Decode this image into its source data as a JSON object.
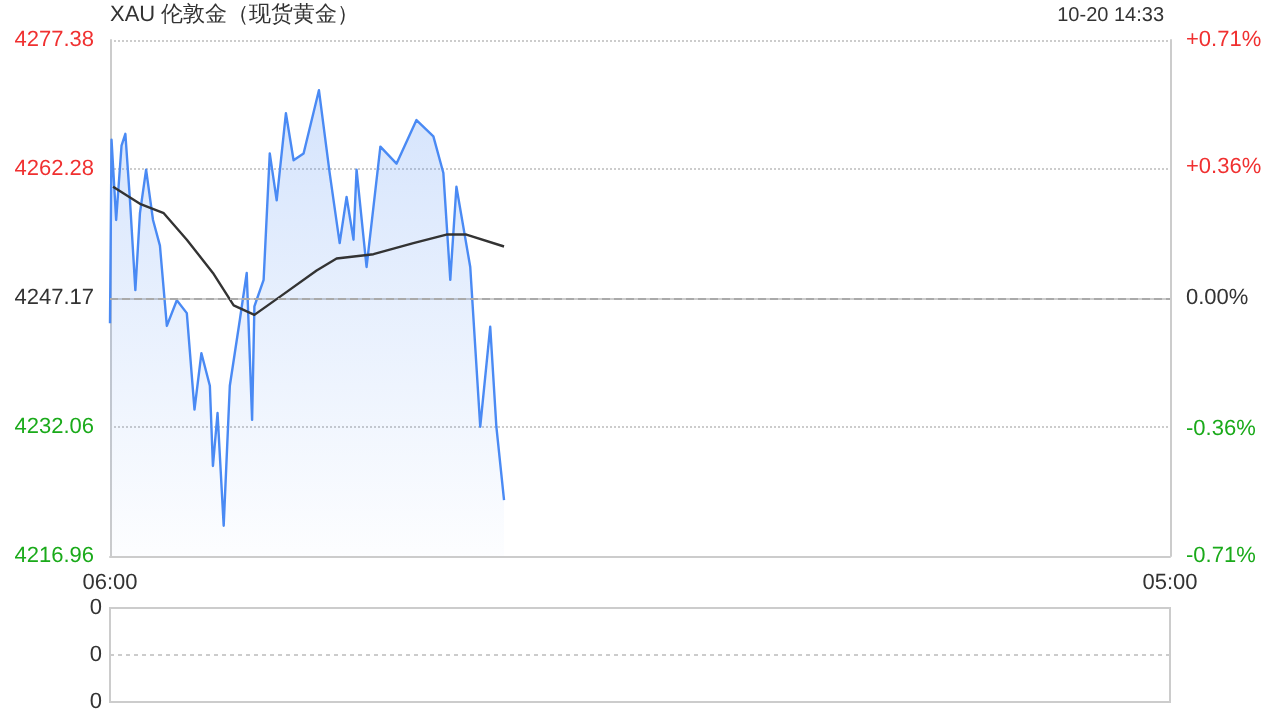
{
  "chart_data": [
    {
      "type": "area",
      "title": "XAU 伦敦金（现货黄金）",
      "annotations": [
        "10-20 14:33"
      ],
      "xlim": [
        "--10-20T06:00",
        "--10-21T05:00"
      ],
      "xticks": [
        {
          "value": "--10-20T06:00",
          "label": "06:00"
        },
        {
          "value": "--10-21T05:00",
          "label": "05:00"
        }
      ],
      "ylim": [
        4216.96,
        4277.38
      ],
      "yticks": [
        4216.96,
        4232.06,
        4247.17,
        4262.28,
        4277.38
      ],
      "y2lim": [
        -0.71,
        0.71
      ],
      "y2ticks": [
        {
          "value": -0.71,
          "label": "-0.71%"
        },
        {
          "value": -0.36,
          "label": "-0.36%"
        },
        {
          "value": 0,
          "label": "0.00%"
        },
        {
          "value": 0.36,
          "label": "+0.36%"
        },
        {
          "value": 0.71,
          "label": "+0.71%"
        }
      ],
      "grid": "y",
      "legend": false,
      "marker": "none",
      "ref_lines": [
        {
          "axis": "y",
          "value": 4247.17,
          "color": "#aaaaaa",
          "line_style": "dashed"
        }
      ],
      "series": [
        {
          "color": "#4a8af4",
          "x": [
            "--10-20T06:00",
            "--10-20T06:02",
            "--10-20T06:08",
            "--10-20T06:15",
            "--10-20T06:20",
            "--10-20T06:26",
            "--10-20T06:33",
            "--10-20T06:39",
            "--10-20T06:47",
            "--10-20T06:56",
            "--10-20T07:05",
            "--10-20T07:14",
            "--10-20T07:27",
            "--10-20T07:40",
            "--10-20T07:50",
            "--10-20T07:59",
            "--10-20T08:10",
            "--10-20T08:14",
            "--10-20T08:20",
            "--10-20T08:28",
            "--10-20T08:36",
            "--10-20T08:49",
            "--10-20T08:58",
            "--10-20T09:05",
            "--10-20T09:08",
            "--10-20T09:20",
            "--10-20T09:28",
            "--10-20T09:37",
            "--10-20T09:49",
            "--10-20T09:59",
            "--10-20T10:12",
            "--10-20T10:32",
            "--10-20T10:46",
            "--10-20T10:59",
            "--10-20T11:08",
            "--10-20T11:17",
            "--10-20T11:21",
            "--10-20T11:34",
            "--10-20T11:52",
            "--10-20T12:13",
            "--10-20T12:39",
            "--10-20T13:01",
            "--10-20T13:14",
            "--10-20T13:23",
            "--10-20T13:31",
            "--10-20T13:49",
            "--10-20T14:02",
            "--10-20T14:15",
            "--10-20T14:23",
            "--10-20T14:33"
          ],
          "values": [
            4244.2,
            4265.7,
            4256.3,
            4265,
            4266.4,
            4258.6,
            4248.1,
            4257.1,
            4262.2,
            4256.3,
            4253.3,
            4243.9,
            4246.9,
            4245.4,
            4234.1,
            4240.7,
            4236.9,
            4227.5,
            4233.7,
            4220.5,
            4236.9,
            4244.6,
            4250.1,
            4232.9,
            4246.2,
            4249.3,
            4264.1,
            4258.6,
            4268.8,
            4263.3,
            4264.1,
            4271.5,
            4261.8,
            4253.6,
            4259,
            4254,
            4262.2,
            4250.8,
            4264.9,
            4262.9,
            4268,
            4266.1,
            4261.8,
            4249.3,
            4260.2,
            4250.8,
            4232.1,
            4243.8,
            4232.1,
            4223.5
          ]
        },
        {
          "type": "line",
          "color": "#333333",
          "x": [
            "--10-20T06:04",
            "--10-20T06:39",
            "--10-20T07:10",
            "--10-20T07:40",
            "--10-20T08:14",
            "--10-20T08:41",
            "--10-20T09:08",
            "--10-20T09:41",
            "--10-20T10:29",
            "--10-20T10:55",
            "--10-20T11:43",
            "--10-20T12:35",
            "--10-20T13:18",
            "--10-20T13:44",
            "--10-20T14:33"
          ],
          "values": [
            4260.2,
            4258.2,
            4257.1,
            4254,
            4250.1,
            4246.3,
            4245.2,
            4247.3,
            4250.4,
            4251.8,
            4252.3,
            4253.6,
            4254.6,
            4254.6,
            4253.2
          ]
        }
      ]
    },
    {
      "type": "other",
      "annotations": [
        "0",
        "0",
        "0"
      ]
    }
  ]
}
